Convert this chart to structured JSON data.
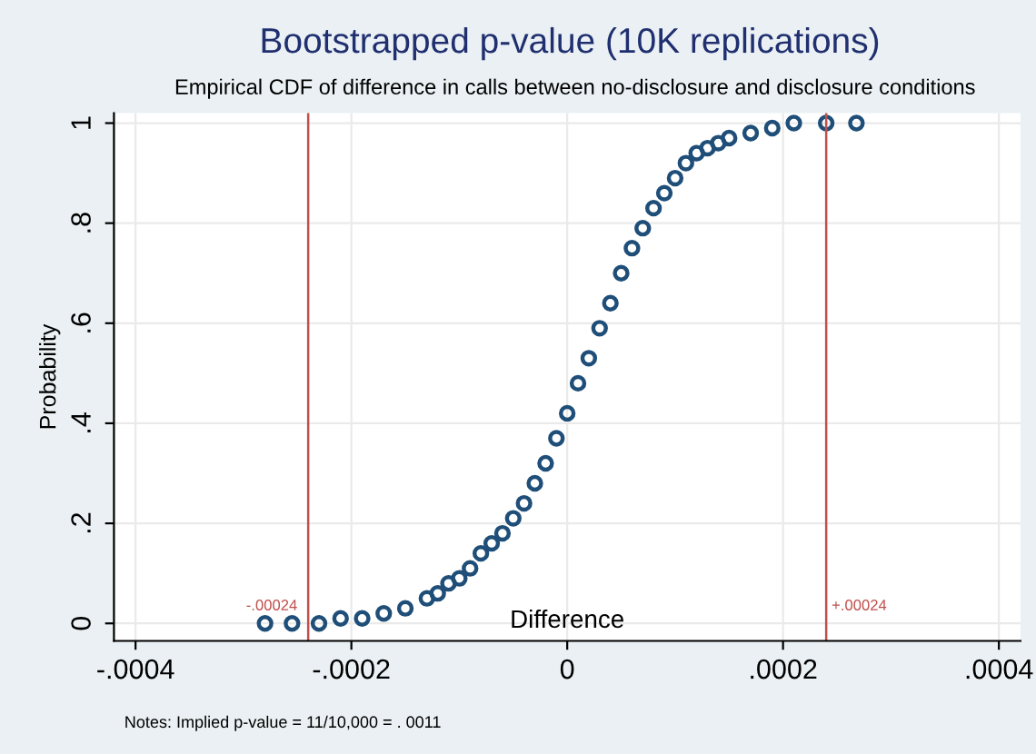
{
  "chart_data": {
    "type": "scatter",
    "title": "Bootstrapped p-value (10K replications)",
    "subtitle": "Empirical CDF of difference in calls between no-disclosure and disclosure conditions",
    "xlabel": "Difference",
    "ylabel": "Probability",
    "x": [
      -0.00028,
      -0.000255,
      -0.00023,
      -0.00021,
      -0.00019,
      -0.00017,
      -0.00015,
      -0.00013,
      -0.00012,
      -0.00011,
      -0.0001,
      -9e-05,
      -8e-05,
      -7e-05,
      -6e-05,
      -5e-05,
      -4e-05,
      -3e-05,
      -2e-05,
      -1e-05,
      0,
      1e-05,
      2e-05,
      3e-05,
      4e-05,
      5e-05,
      6e-05,
      7e-05,
      8e-05,
      9e-05,
      0.0001,
      0.00011,
      0.00012,
      0.00013,
      0.00014,
      0.00015,
      0.00017,
      0.00019,
      0.00021,
      0.00024,
      0.000268
    ],
    "values": [
      0,
      0,
      0,
      0.01,
      0.01,
      0.02,
      0.03,
      0.05,
      0.06,
      0.08,
      0.09,
      0.11,
      0.14,
      0.16,
      0.18,
      0.21,
      0.24,
      0.28,
      0.32,
      0.37,
      0.42,
      0.48,
      0.53,
      0.59,
      0.64,
      0.7,
      0.75,
      0.79,
      0.83,
      0.86,
      0.89,
      0.92,
      0.94,
      0.95,
      0.96,
      0.97,
      0.98,
      0.99,
      1,
      1,
      1
    ],
    "color": "#1f4e79",
    "marker": "circle",
    "grid": true,
    "xlim": [
      -0.00042,
      0.00042
    ],
    "xticks": [
      {
        "value": -0.0004,
        "label": "-.0004"
      },
      {
        "value": -0.0002,
        "label": "-.0002"
      },
      0,
      {
        "value": 0.0002,
        "label": ".0002"
      },
      {
        "value": 0.0004,
        "label": ".0004"
      }
    ],
    "ylim": [
      -0.035,
      1.02
    ],
    "yticks": [
      0,
      {
        "value": 0.2,
        "label": ".2"
      },
      {
        "value": 0.4,
        "label": ".4"
      },
      {
        "value": 0.6,
        "label": ".6"
      },
      {
        "value": 0.8,
        "label": ".8"
      },
      1
    ],
    "ref_lines": [
      {
        "axis": "x",
        "value": -0.00024,
        "label": "-.00024",
        "color": "#c0504d"
      },
      {
        "axis": "x",
        "value": 0.00024,
        "label": "+.00024",
        "color": "#c0504d"
      }
    ],
    "annotations": [
      "Notes: Implied p-value = 11/10,000 = . 0011"
    ]
  }
}
